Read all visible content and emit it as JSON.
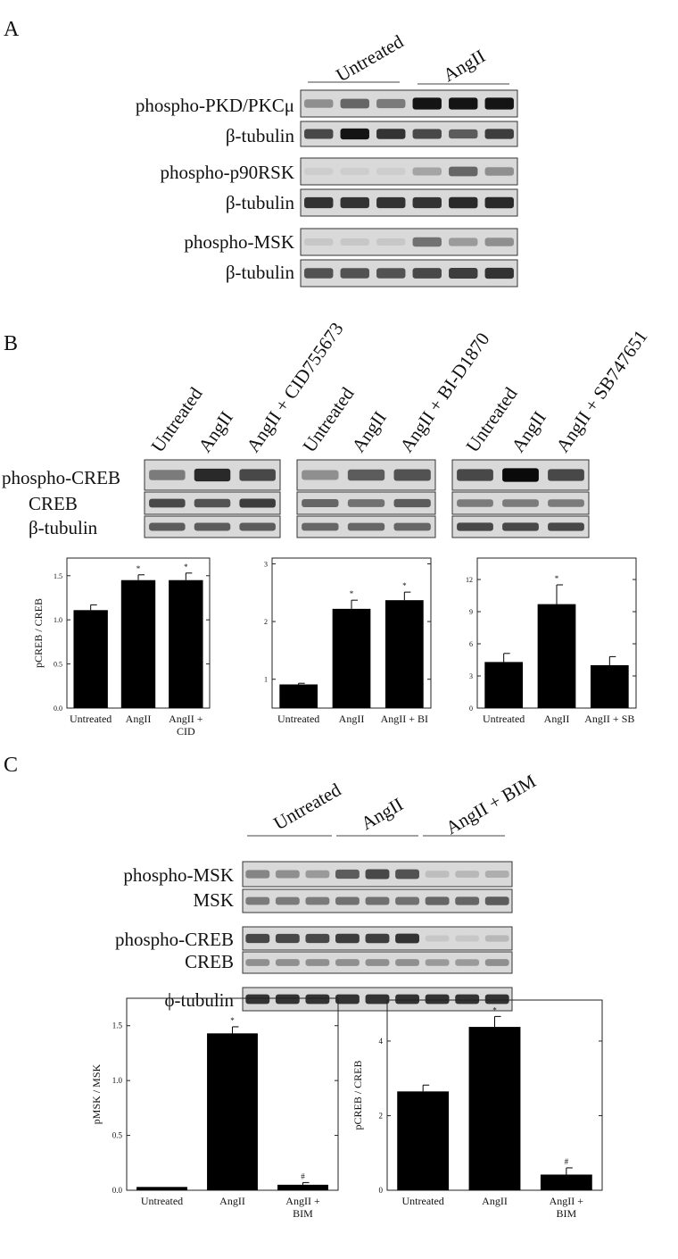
{
  "panels": {
    "A": "A",
    "B": "B",
    "C": "C"
  },
  "panelA": {
    "groups": [
      "Untreated",
      "AngII"
    ],
    "rows": [
      {
        "label": "phospho-PKD/PKCμ",
        "intensity": [
          0.35,
          0.55,
          0.45,
          0.95,
          0.95,
          0.95
        ]
      },
      {
        "label": "β-tubulin",
        "intensity": [
          0.7,
          0.95,
          0.8,
          0.7,
          0.6,
          0.75
        ]
      },
      {
        "label": "phospho-p90RSK",
        "intensity": [
          0.05,
          0.05,
          0.05,
          0.25,
          0.55,
          0.35
        ]
      },
      {
        "label": "β-tubulin",
        "intensity": [
          0.8,
          0.8,
          0.8,
          0.8,
          0.85,
          0.85
        ]
      },
      {
        "label": "phospho-MSK",
        "intensity": [
          0.08,
          0.08,
          0.08,
          0.5,
          0.3,
          0.35
        ]
      },
      {
        "label": "β-tubulin",
        "intensity": [
          0.65,
          0.65,
          0.65,
          0.7,
          0.75,
          0.8
        ]
      }
    ]
  },
  "panelB": {
    "blots": [
      {
        "lanes": [
          "Untreated",
          "AngII",
          "AngII + CID755673"
        ],
        "intensity": {
          "pcreb": [
            0.45,
            0.85,
            0.7
          ],
          "creb": [
            0.7,
            0.65,
            0.75
          ],
          "tub": [
            0.6,
            0.6,
            0.6
          ]
        }
      },
      {
        "lanes": [
          "Untreated",
          "AngII",
          "AngII + BI-D1870"
        ],
        "intensity": {
          "pcreb": [
            0.35,
            0.6,
            0.65
          ],
          "creb": [
            0.55,
            0.5,
            0.6
          ],
          "tub": [
            0.55,
            0.55,
            0.55
          ]
        }
      },
      {
        "lanes": [
          "Untreated",
          "AngII",
          "AngII + SB747651"
        ],
        "intensity": {
          "pcreb": [
            0.7,
            1.0,
            0.7
          ],
          "creb": [
            0.45,
            0.45,
            0.45
          ],
          "tub": [
            0.7,
            0.7,
            0.7
          ]
        }
      }
    ],
    "rowlabels": [
      "phospho-CREB",
      "CREB",
      "β-tubulin"
    ]
  },
  "panelC": {
    "groups": [
      "Untreated",
      "AngII",
      "AngII + BIM"
    ],
    "rows": [
      {
        "label": "phospho-MSK",
        "intensity": [
          0.4,
          0.35,
          0.3,
          0.6,
          0.7,
          0.65,
          0.12,
          0.15,
          0.2
        ]
      },
      {
        "label": "MSK",
        "intensity": [
          0.45,
          0.45,
          0.45,
          0.5,
          0.5,
          0.5,
          0.55,
          0.55,
          0.6
        ]
      },
      {
        "label": "phospho-CREB",
        "intensity": [
          0.7,
          0.7,
          0.7,
          0.75,
          0.75,
          0.8,
          0.08,
          0.08,
          0.15
        ]
      },
      {
        "label": "CREB",
        "intensity": [
          0.35,
          0.35,
          0.35,
          0.35,
          0.35,
          0.35,
          0.3,
          0.3,
          0.35
        ]
      },
      {
        "label": "ϕ-tubulin",
        "intensity": [
          0.8,
          0.8,
          0.8,
          0.8,
          0.8,
          0.8,
          0.8,
          0.8,
          0.8
        ]
      }
    ]
  },
  "chart_data": [
    {
      "type": "bar",
      "ylabel": "pCREB / CREB",
      "categories": [
        "Untreated",
        "AngII",
        "AngII +\nCID"
      ],
      "values": [
        1.11,
        1.45,
        1.45
      ],
      "errors": [
        0.06,
        0.06,
        0.08
      ],
      "marks": [
        "",
        "*",
        "*"
      ],
      "ylim": [
        0,
        1.7
      ],
      "yticks": [
        "0.0",
        "0.5",
        "1.0",
        "1.5"
      ],
      "ytickvals": [
        0,
        0.5,
        1.0,
        1.5
      ]
    },
    {
      "type": "bar",
      "ylabel": "",
      "categories": [
        "Untreated",
        "AngII",
        "AngII + BI"
      ],
      "values": [
        0.91,
        2.22,
        2.37
      ],
      "errors": [
        0.02,
        0.15,
        0.14
      ],
      "marks": [
        "",
        "*",
        "*"
      ],
      "ylim": [
        0.5,
        3.1
      ],
      "yticks": [
        "1",
        "2",
        "3"
      ],
      "ytickvals": [
        1,
        2,
        3
      ]
    },
    {
      "type": "bar",
      "ylabel": "",
      "categories": [
        "Untreated",
        "AngII",
        "AngII + SB"
      ],
      "values": [
        4.3,
        9.7,
        4.0
      ],
      "errors": [
        0.8,
        1.8,
        0.8
      ],
      "marks": [
        "",
        "*",
        ""
      ],
      "ylim": [
        0,
        14
      ],
      "yticks": [
        "0",
        "3",
        "6",
        "9",
        "12"
      ],
      "ytickvals": [
        0,
        3,
        6,
        9,
        12
      ]
    },
    {
      "type": "bar",
      "ylabel": "pMSK / MSK",
      "categories": [
        "Untreated",
        "AngII",
        "AngII +\nBIM"
      ],
      "values": [
        0.03,
        1.43,
        0.05
      ],
      "errors": [
        0.0,
        0.06,
        0.02
      ],
      "marks": [
        "",
        "*",
        "#"
      ],
      "ylim": [
        0,
        1.75
      ],
      "yticks": [
        "0.0",
        "0.5",
        "1.0",
        "1.5"
      ],
      "ytickvals": [
        0,
        0.5,
        1.0,
        1.5
      ]
    },
    {
      "type": "bar",
      "ylabel": "pCREB / CREB",
      "categories": [
        "Untreated",
        "AngII",
        "AngII +\nBIM"
      ],
      "values": [
        2.65,
        4.38,
        0.42
      ],
      "errors": [
        0.17,
        0.28,
        0.18
      ],
      "marks": [
        "",
        "*",
        "#"
      ],
      "ylim": [
        0,
        5.1
      ],
      "yticks": [
        "0",
        "2",
        "4"
      ],
      "ytickvals": [
        0,
        2,
        4
      ]
    }
  ]
}
